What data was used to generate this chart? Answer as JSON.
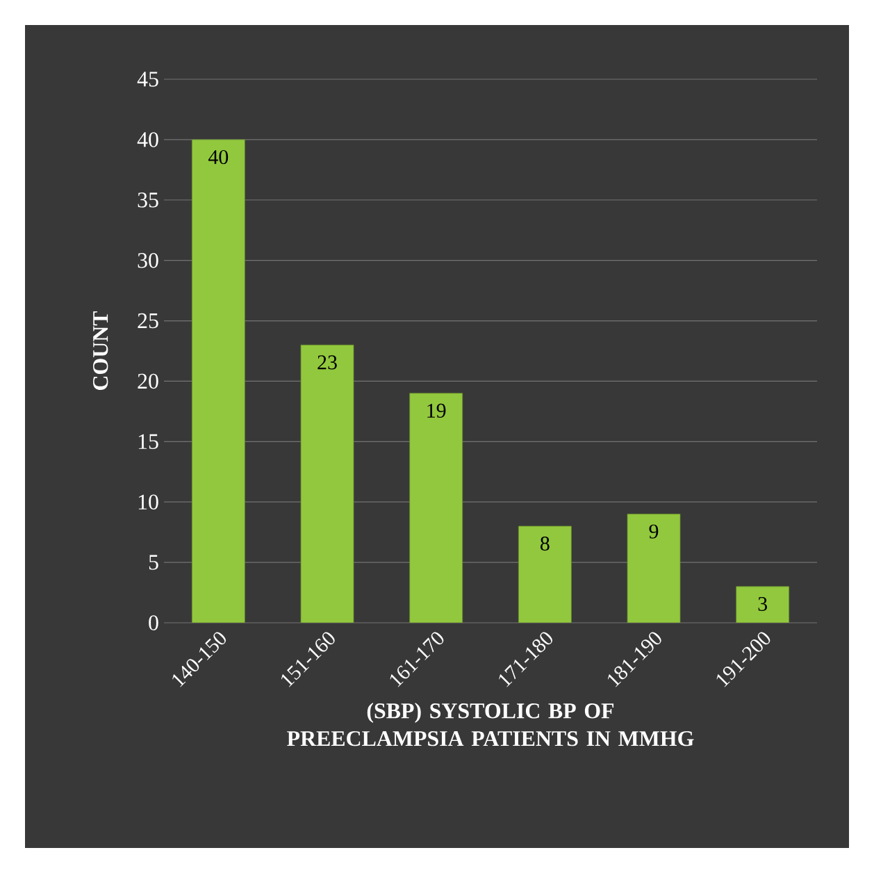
{
  "chart_data": {
    "type": "bar",
    "xlabel": "(SBP) SYSTOLIC BP OF PREECLAMPSIA PATIENTS IN MMHG",
    "ylabel": "COUNT",
    "categories": [
      "140-150",
      "151-160",
      "161-170",
      "171-180",
      "181-190",
      "191-200"
    ],
    "values": [
      40,
      23,
      19,
      8,
      9,
      3
    ],
    "color": "#92c83e",
    "data_labels": true,
    "ylim": [
      0,
      45
    ],
    "yticks": [
      0,
      5,
      10,
      15,
      20,
      25,
      30,
      35,
      40,
      45
    ],
    "grid": "y"
  }
}
